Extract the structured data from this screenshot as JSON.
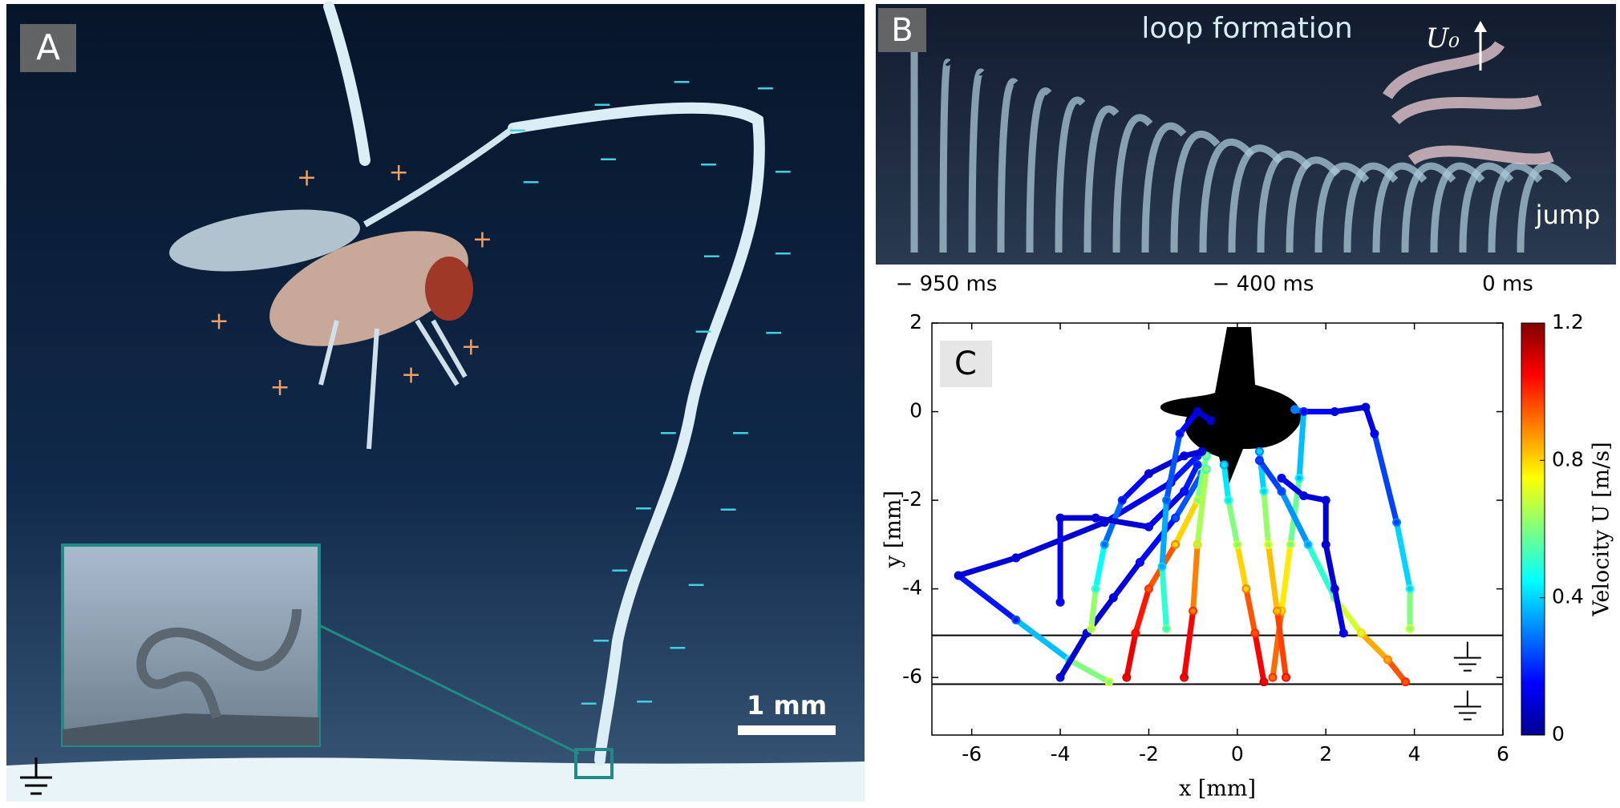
{
  "panels": {
    "a": {
      "label": "A",
      "scale_bar": "1 mm",
      "positive_sign": "+",
      "negative_sign": "−"
    },
    "b": {
      "label": "B",
      "title": "loop formation",
      "velocity_label": "U₀",
      "jump_label": "jump",
      "time_labels": [
        "− 950 ms",
        "− 400 ms",
        "0 ms"
      ]
    }
  },
  "chart_data": {
    "type": "scatter",
    "label": "C",
    "x_label": "x [mm]",
    "y_label": "y [mm]",
    "xlim": [
      -6.9,
      6
    ],
    "ylim": [
      -7.3,
      2
    ],
    "xticks": [
      -6,
      -4,
      -2,
      0,
      2,
      4,
      6
    ],
    "yticks": [
      -6,
      -4,
      -2,
      0,
      2
    ],
    "ground_lines": [
      -5.05,
      -6.15
    ],
    "colorbar": {
      "label": "Velocity U [m/s]",
      "lim": [
        0,
        1.2
      ],
      "ticks": [
        0,
        0.4,
        0.8,
        1.2
      ]
    },
    "trajectories": [
      {
        "x": [
          -2.9,
          -3.8,
          -5,
          -6.3,
          -5,
          -3,
          -1.5,
          -0.9
        ],
        "y": [
          -6.1,
          -5.6,
          -4.7,
          -3.7,
          -3.3,
          -2.5,
          -1.6,
          -1.0
        ],
        "u": [
          0.7,
          0.5,
          0.25,
          0.1,
          0.1,
          0.1,
          0.15,
          0.2
        ]
      },
      {
        "x": [
          -4.0,
          -3.4,
          -2.8,
          -2.2,
          -1.4,
          -0.8
        ],
        "y": [
          -6.0,
          -5.0,
          -4.2,
          -3.4,
          -2.4,
          -1.4
        ],
        "u": [
          0.1,
          0.1,
          0.1,
          0.12,
          0.2,
          0.3
        ]
      },
      {
        "x": [
          -2.5,
          -2.3,
          -2.0,
          -1.4,
          -0.9,
          -0.7
        ],
        "y": [
          -6.0,
          -5.0,
          -4.0,
          -3.0,
          -2.0,
          -1.0
        ],
        "u": [
          1.1,
          1.05,
          1.0,
          0.9,
          0.7,
          0.5
        ]
      },
      {
        "x": [
          -3.3,
          -3.2,
          -3.0,
          -2.6,
          -2.0,
          -1.2,
          -0.8
        ],
        "y": [
          -4.9,
          -4.0,
          -3.0,
          -2.0,
          -1.4,
          -1.0,
          -0.9
        ],
        "u": [
          0.7,
          0.55,
          0.35,
          0.2,
          0.1,
          0.1,
          0.1
        ]
      },
      {
        "x": [
          -4.0,
          -4.0,
          -3.2,
          -2,
          -1.2,
          -0.9
        ],
        "y": [
          -4.3,
          -2.4,
          -2.4,
          -2.6,
          -1.8,
          -1.2
        ],
        "u": [
          0.15,
          0.1,
          0.1,
          0.1,
          0.15,
          0.2
        ]
      },
      {
        "x": [
          -1.6,
          -1.7,
          -1.6,
          -1.3,
          -0.9,
          -0.6
        ],
        "y": [
          -4.9,
          -3.5,
          -2.0,
          -0.5,
          0,
          -0.2
        ],
        "u": [
          0.6,
          0.4,
          0.3,
          0.2,
          0.1,
          0.1
        ]
      },
      {
        "x": [
          0.6,
          0.4,
          0.2,
          0,
          -0.2,
          -0.3
        ],
        "y": [
          -6.1,
          -5,
          -4,
          -3,
          -2,
          -1.2
        ],
        "u": [
          1.1,
          1.0,
          0.9,
          0.7,
          0.5,
          0.35
        ]
      },
      {
        "x": [
          0.8,
          1.0,
          1.2,
          1.4,
          1.5,
          1.3
        ],
        "y": [
          -6.0,
          -4.5,
          -3.0,
          -1.5,
          0,
          0.05
        ],
        "u": [
          1.0,
          0.85,
          0.7,
          0.45,
          0.3,
          0.3
        ]
      },
      {
        "x": [
          1.1,
          0.9,
          0.7,
          0.6,
          0.5
        ],
        "y": [
          -6.0,
          -4.5,
          -3,
          -1.8,
          -0.9
        ],
        "u": [
          1.05,
          0.9,
          0.75,
          0.5,
          0.3
        ]
      },
      {
        "x": [
          3.8,
          3.4,
          2.8,
          2.2,
          1.6,
          1.0,
          0.5
        ],
        "y": [
          -6.1,
          -5.6,
          -5.0,
          -4.2,
          -3.0,
          -1.8,
          -1.1
        ],
        "u": [
          1.0,
          0.9,
          0.8,
          0.6,
          0.4,
          0.25,
          0.2
        ]
      },
      {
        "x": [
          3.9,
          3.9,
          3.6,
          3.1,
          2.9,
          2.2,
          1.5
        ],
        "y": [
          -4.9,
          -4,
          -2.5,
          -0.5,
          0.1,
          0,
          0
        ],
        "u": [
          0.7,
          0.5,
          0.3,
          0.15,
          0.1,
          0.1,
          0.2
        ]
      },
      {
        "x": [
          2.4,
          2.2,
          2.0,
          2.0,
          1.5,
          1.0
        ],
        "y": [
          -5.0,
          -4.0,
          -3.0,
          -2.0,
          -1.9,
          -1.5
        ],
        "u": [
          0.15,
          0.1,
          0.1,
          0.1,
          0.1,
          0.15
        ]
      },
      {
        "x": [
          -1.2,
          -1.0,
          -0.9,
          -0.7
        ],
        "y": [
          -6.0,
          -4.5,
          -3,
          -1.3
        ],
        "u": [
          1.1,
          1.0,
          0.8,
          0.5
        ]
      }
    ]
  }
}
